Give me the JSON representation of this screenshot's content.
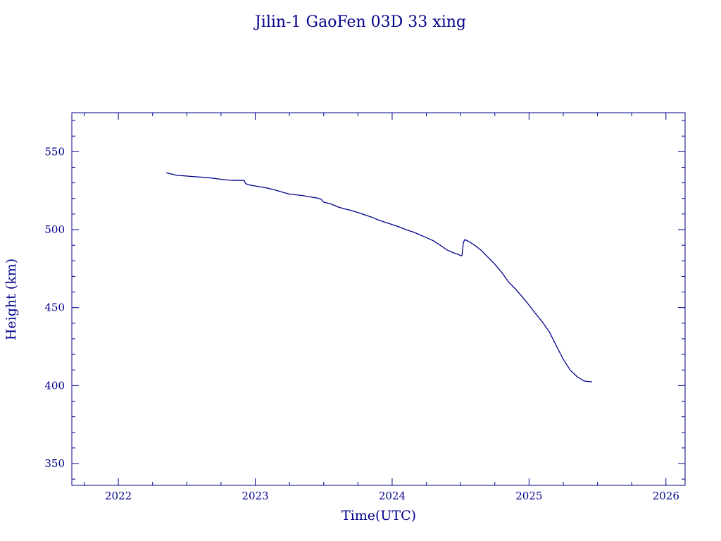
{
  "chart_data": {
    "type": "line",
    "title": "Jilin-1 GaoFen 03D 33 xing",
    "xlabel": "Time(UTC)",
    "ylabel": "Height (km)",
    "xlim": [
      2021.66,
      2026.14
    ],
    "ylim": [
      336,
      575
    ],
    "xticks": [
      2022,
      2023,
      2024,
      2025,
      2026
    ],
    "yticks": [
      350,
      400,
      450,
      500,
      550
    ],
    "x_minor_step": 0.25,
    "y_minor_step": 10,
    "grid": false,
    "color": "#00008b",
    "series": [
      {
        "x": [
          2022.35,
          2022.38,
          2022.41,
          2022.43,
          2022.47,
          2022.55,
          2022.65,
          2022.75,
          2022.8,
          2022.85,
          2022.9,
          2022.92,
          2022.93,
          2022.96,
          2023.0,
          2023.05,
          2023.1,
          2023.15,
          2023.2,
          2023.25,
          2023.3,
          2023.35,
          2023.4,
          2023.45,
          2023.48,
          2023.5,
          2023.55,
          2023.6,
          2023.65,
          2023.7,
          2023.75,
          2023.8,
          2023.85,
          2023.9,
          2023.95,
          2024.0,
          2024.05,
          2024.1,
          2024.15,
          2024.2,
          2024.25,
          2024.3,
          2024.35,
          2024.4,
          2024.45,
          2024.48,
          2024.5,
          2024.51,
          2024.52,
          2024.53,
          2024.55,
          2024.6,
          2024.65,
          2024.7,
          2024.75,
          2024.8,
          2024.85,
          2024.9,
          2024.95,
          2025.0,
          2025.05,
          2025.1,
          2025.15,
          2025.2,
          2025.25,
          2025.3,
          2025.35,
          2025.4,
          2025.43,
          2025.46
        ],
        "y": [
          536.5,
          535.8,
          535.2,
          534.8,
          534.6,
          534.0,
          533.4,
          532.3,
          531.8,
          531.6,
          531.6,
          531.4,
          529.5,
          528.6,
          528.0,
          527.3,
          526.4,
          525.3,
          524.0,
          522.8,
          522.3,
          521.8,
          521.0,
          520.3,
          519.6,
          517.6,
          516.6,
          514.7,
          513.4,
          512.3,
          511.0,
          509.5,
          508.0,
          506.2,
          504.7,
          503.3,
          501.8,
          500.0,
          498.6,
          496.8,
          494.9,
          492.9,
          490.1,
          487.0,
          485.1,
          484.2,
          483.4,
          483.3,
          491.5,
          493.6,
          492.9,
          490.2,
          486.8,
          482.3,
          477.9,
          472.6,
          466.5,
          462.0,
          457.0,
          451.6,
          445.9,
          440.5,
          434.2,
          425.4,
          416.9,
          410.0,
          405.8,
          403.0,
          402.6,
          402.4
        ]
      }
    ]
  }
}
